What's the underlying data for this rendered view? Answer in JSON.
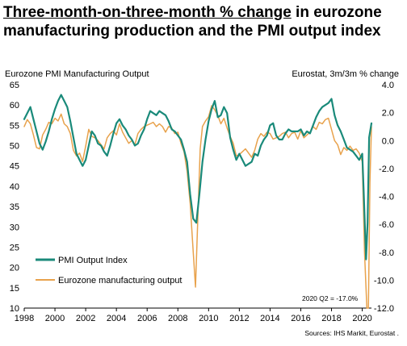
{
  "title_underlined": "Three-month-on-three-month % change",
  "title_rest": " in eurozone manufacturing production and the PMI output index",
  "chart_data": {
    "type": "line",
    "title": "Three-month-on-three-month % change in eurozone manufacturing production and the PMI output index",
    "y_left_label": "Eurozone PMI Manufacturing Output",
    "y_right_label": "Eurostat, 3m/3m  % change",
    "y_left_range": [
      10,
      65
    ],
    "y_right_range": [
      -12.0,
      4.0
    ],
    "y_left_ticks": [
      "10",
      "15",
      "20",
      "25",
      "30",
      "35",
      "40",
      "45",
      "50",
      "55",
      "60",
      "65"
    ],
    "y_right_ticks": [
      "4.0",
      "2.0",
      "0.0",
      "-2.0",
      "-4.0",
      "-6.0",
      "-8.0",
      "-10.0",
      "-12.0"
    ],
    "x_range": [
      1998,
      2020.6
    ],
    "x_ticks": [
      "1998",
      "2000",
      "2002",
      "2004",
      "2006",
      "2008",
      "2010",
      "2012",
      "2014",
      "2016",
      "2018",
      "2020"
    ],
    "annotation": "2020 Q2 = -17.0%",
    "source": "Sources: IHS Markit, Eurostat .",
    "grid": false,
    "legend_position": "bottom-left",
    "series": [
      {
        "name": "PMI Output Index",
        "color": "#1a8a7a",
        "axis": "left",
        "points": [
          [
            1998.0,
            56.5
          ],
          [
            1998.2,
            58.0
          ],
          [
            1998.4,
            59.5
          ],
          [
            1998.6,
            56.5
          ],
          [
            1998.8,
            53.5
          ],
          [
            1999.0,
            50.5
          ],
          [
            1999.2,
            49.0
          ],
          [
            1999.4,
            51.0
          ],
          [
            1999.6,
            53.5
          ],
          [
            1999.8,
            56.5
          ],
          [
            2000.0,
            59.0
          ],
          [
            2000.2,
            61.0
          ],
          [
            2000.4,
            62.5
          ],
          [
            2000.6,
            61.0
          ],
          [
            2000.8,
            59.5
          ],
          [
            2001.0,
            56.0
          ],
          [
            2001.2,
            52.0
          ],
          [
            2001.4,
            48.0
          ],
          [
            2001.6,
            46.5
          ],
          [
            2001.8,
            45.0
          ],
          [
            2002.0,
            46.5
          ],
          [
            2002.2,
            50.0
          ],
          [
            2002.4,
            53.5
          ],
          [
            2002.6,
            52.5
          ],
          [
            2002.8,
            50.5
          ],
          [
            2003.0,
            50.0
          ],
          [
            2003.2,
            48.5
          ],
          [
            2003.4,
            47.5
          ],
          [
            2003.6,
            50.0
          ],
          [
            2003.8,
            53.0
          ],
          [
            2004.0,
            55.5
          ],
          [
            2004.2,
            56.5
          ],
          [
            2004.4,
            55.0
          ],
          [
            2004.6,
            54.0
          ],
          [
            2004.8,
            52.5
          ],
          [
            2005.0,
            51.5
          ],
          [
            2005.2,
            50.0
          ],
          [
            2005.4,
            50.5
          ],
          [
            2005.6,
            52.5
          ],
          [
            2005.8,
            54.0
          ],
          [
            2006.0,
            56.5
          ],
          [
            2006.2,
            58.5
          ],
          [
            2006.4,
            58.0
          ],
          [
            2006.6,
            57.5
          ],
          [
            2006.8,
            58.5
          ],
          [
            2007.0,
            58.0
          ],
          [
            2007.2,
            57.5
          ],
          [
            2007.4,
            56.0
          ],
          [
            2007.6,
            54.0
          ],
          [
            2007.8,
            53.5
          ],
          [
            2008.0,
            52.5
          ],
          [
            2008.2,
            51.5
          ],
          [
            2008.4,
            49.0
          ],
          [
            2008.6,
            46.0
          ],
          [
            2008.8,
            38.0
          ],
          [
            2009.0,
            32.0
          ],
          [
            2009.2,
            31.0
          ],
          [
            2009.4,
            38.0
          ],
          [
            2009.6,
            46.0
          ],
          [
            2009.8,
            51.5
          ],
          [
            2010.0,
            56.0
          ],
          [
            2010.2,
            59.0
          ],
          [
            2010.4,
            61.0
          ],
          [
            2010.6,
            57.0
          ],
          [
            2010.8,
            57.5
          ],
          [
            2011.0,
            59.5
          ],
          [
            2011.2,
            58.0
          ],
          [
            2011.4,
            52.0
          ],
          [
            2011.6,
            49.0
          ],
          [
            2011.8,
            46.5
          ],
          [
            2012.0,
            48.0
          ],
          [
            2012.2,
            46.5
          ],
          [
            2012.4,
            45.0
          ],
          [
            2012.6,
            45.5
          ],
          [
            2012.8,
            46.0
          ],
          [
            2013.0,
            48.0
          ],
          [
            2013.2,
            47.5
          ],
          [
            2013.4,
            50.0
          ],
          [
            2013.6,
            51.5
          ],
          [
            2013.8,
            52.5
          ],
          [
            2014.0,
            55.0
          ],
          [
            2014.2,
            55.5
          ],
          [
            2014.4,
            52.5
          ],
          [
            2014.6,
            51.5
          ],
          [
            2014.8,
            51.5
          ],
          [
            2015.0,
            53.0
          ],
          [
            2015.2,
            54.0
          ],
          [
            2015.4,
            53.5
          ],
          [
            2015.6,
            53.5
          ],
          [
            2015.8,
            53.5
          ],
          [
            2016.0,
            54.0
          ],
          [
            2016.2,
            52.5
          ],
          [
            2016.4,
            53.5
          ],
          [
            2016.6,
            53.0
          ],
          [
            2016.8,
            55.0
          ],
          [
            2017.0,
            57.0
          ],
          [
            2017.2,
            58.5
          ],
          [
            2017.4,
            59.5
          ],
          [
            2017.6,
            60.0
          ],
          [
            2017.8,
            60.5
          ],
          [
            2018.0,
            61.5
          ],
          [
            2018.2,
            57.5
          ],
          [
            2018.4,
            55.0
          ],
          [
            2018.6,
            53.5
          ],
          [
            2018.8,
            51.5
          ],
          [
            2019.0,
            49.5
          ],
          [
            2019.2,
            49.0
          ],
          [
            2019.4,
            48.5
          ],
          [
            2019.6,
            47.5
          ],
          [
            2019.8,
            46.5
          ],
          [
            2020.0,
            48.0
          ],
          [
            2020.1,
            38.0
          ],
          [
            2020.25,
            22.0
          ],
          [
            2020.35,
            31.0
          ],
          [
            2020.45,
            52.0
          ],
          [
            2020.6,
            55.5
          ]
        ]
      },
      {
        "name": "Eurozone manufacturing output",
        "color": "#e8a24c",
        "axis": "right",
        "points": [
          [
            1998.0,
            1.0
          ],
          [
            1998.2,
            1.5
          ],
          [
            1998.4,
            1.2
          ],
          [
            1998.6,
            0.4
          ],
          [
            1998.8,
            -0.5
          ],
          [
            1999.0,
            -0.6
          ],
          [
            1999.2,
            0.4
          ],
          [
            1999.4,
            0.8
          ],
          [
            1999.6,
            1.3
          ],
          [
            1999.8,
            1.2
          ],
          [
            2000.0,
            1.6
          ],
          [
            2000.2,
            1.4
          ],
          [
            2000.4,
            1.9
          ],
          [
            2000.6,
            1.2
          ],
          [
            2000.8,
            1.0
          ],
          [
            2001.0,
            0.5
          ],
          [
            2001.2,
            -0.7
          ],
          [
            2001.4,
            -1.1
          ],
          [
            2001.6,
            -0.9
          ],
          [
            2001.8,
            -1.5
          ],
          [
            2002.0,
            -0.4
          ],
          [
            2002.2,
            0.8
          ],
          [
            2002.4,
            0.3
          ],
          [
            2002.6,
            0.2
          ],
          [
            2002.8,
            0.0
          ],
          [
            2003.0,
            -0.3
          ],
          [
            2003.2,
            -0.6
          ],
          [
            2003.4,
            0.2
          ],
          [
            2003.6,
            0.5
          ],
          [
            2003.8,
            0.7
          ],
          [
            2004.0,
            0.4
          ],
          [
            2004.2,
            1.2
          ],
          [
            2004.4,
            0.6
          ],
          [
            2004.6,
            0.2
          ],
          [
            2004.8,
            -0.2
          ],
          [
            2005.0,
            0.0
          ],
          [
            2005.2,
            -0.3
          ],
          [
            2005.4,
            0.5
          ],
          [
            2005.6,
            0.8
          ],
          [
            2005.8,
            1.0
          ],
          [
            2006.0,
            1.1
          ],
          [
            2006.2,
            1.2
          ],
          [
            2006.4,
            1.3
          ],
          [
            2006.6,
            1.0
          ],
          [
            2006.8,
            1.2
          ],
          [
            2007.0,
            1.0
          ],
          [
            2007.2,
            0.6
          ],
          [
            2007.4,
            1.0
          ],
          [
            2007.6,
            0.9
          ],
          [
            2007.8,
            0.5
          ],
          [
            2008.0,
            0.6
          ],
          [
            2008.2,
            -0.2
          ],
          [
            2008.4,
            -0.8
          ],
          [
            2008.6,
            -2.2
          ],
          [
            2008.8,
            -4.5
          ],
          [
            2009.0,
            -8.0
          ],
          [
            2009.15,
            -10.5
          ],
          [
            2009.3,
            -5.5
          ],
          [
            2009.45,
            -0.6
          ],
          [
            2009.6,
            1.0
          ],
          [
            2009.8,
            1.4
          ],
          [
            2010.0,
            1.7
          ],
          [
            2010.2,
            2.5
          ],
          [
            2010.4,
            2.2
          ],
          [
            2010.6,
            1.8
          ],
          [
            2010.8,
            1.2
          ],
          [
            2011.0,
            1.6
          ],
          [
            2011.2,
            0.9
          ],
          [
            2011.4,
            0.3
          ],
          [
            2011.6,
            -0.2
          ],
          [
            2011.8,
            -1.1
          ],
          [
            2012.0,
            -1.0
          ],
          [
            2012.2,
            -0.8
          ],
          [
            2012.4,
            -0.6
          ],
          [
            2012.6,
            -0.9
          ],
          [
            2012.8,
            -1.2
          ],
          [
            2013.0,
            -0.7
          ],
          [
            2013.2,
            0.1
          ],
          [
            2013.4,
            0.5
          ],
          [
            2013.6,
            0.3
          ],
          [
            2013.8,
            0.6
          ],
          [
            2014.0,
            0.5
          ],
          [
            2014.2,
            0.1
          ],
          [
            2014.4,
            0.2
          ],
          [
            2014.6,
            0.3
          ],
          [
            2014.8,
            0.5
          ],
          [
            2015.0,
            0.6
          ],
          [
            2015.2,
            0.2
          ],
          [
            2015.4,
            0.5
          ],
          [
            2015.6,
            0.6
          ],
          [
            2015.8,
            0.1
          ],
          [
            2016.0,
            0.7
          ],
          [
            2016.2,
            0.2
          ],
          [
            2016.4,
            0.4
          ],
          [
            2016.6,
            0.6
          ],
          [
            2016.8,
            1.0
          ],
          [
            2017.0,
            0.8
          ],
          [
            2017.2,
            1.3
          ],
          [
            2017.4,
            1.2
          ],
          [
            2017.6,
            1.5
          ],
          [
            2017.8,
            1.6
          ],
          [
            2018.0,
            0.8
          ],
          [
            2018.2,
            0.0
          ],
          [
            2018.4,
            -0.3
          ],
          [
            2018.6,
            -1.0
          ],
          [
            2018.8,
            -0.5
          ],
          [
            2019.0,
            -0.7
          ],
          [
            2019.2,
            -0.4
          ],
          [
            2019.4,
            -0.7
          ],
          [
            2019.6,
            -0.6
          ],
          [
            2019.8,
            -0.9
          ],
          [
            2020.0,
            -1.5
          ],
          [
            2020.15,
            -8.0
          ],
          [
            2020.3,
            -12.0
          ],
          [
            2020.4,
            -12.0
          ],
          [
            2020.5,
            -3.0
          ],
          [
            2020.6,
            1.0
          ]
        ]
      }
    ]
  }
}
